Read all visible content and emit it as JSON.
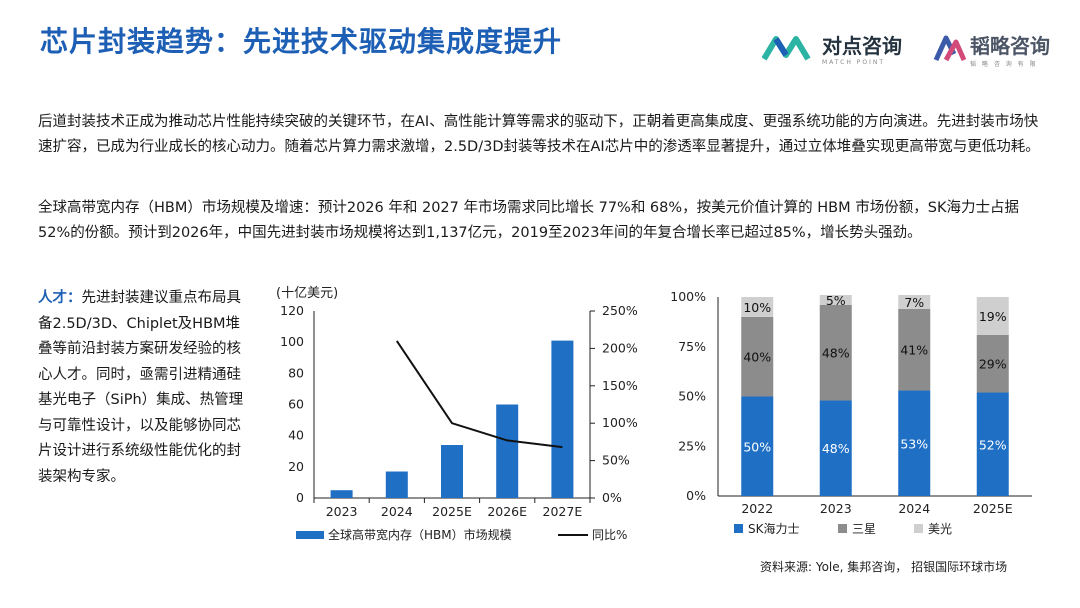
{
  "header": {
    "title": "芯片封装趋势：先进技术驱动集成度提升",
    "logo1_name": "对点咨询",
    "logo1_sub": "MATCH POINT",
    "logo2_name": "韬略咨询",
    "logo2_sub": "韬 略 咨 询 有 限"
  },
  "body": {
    "para1": "后道封装技术正成为推动芯片性能持续突破的关键环节，在AI、高性能计算等需求的驱动下，正朝着更高集成度、更强系统功能的方向演进。先进封装市场快速扩容，已成为行业成长的核心动力。随着芯片算力需求激增，2.5D/3D封装等技术在AI芯片中的渗透率显著提升，通过立体堆叠实现更高带宽与更低功耗。",
    "para2": "全球高带宽内存（HBM）市场规模及增速：预计2026 年和 2027 年市场需求同比增长 77%和 68%，按美元价值计算的 HBM 市场份额，SK海力士占据 52%的份额。预计到2026年，中国先进封装市场规模将达到1,137亿元，2019至2023年间的年复合增长率已超过85%，增长势头强劲。",
    "talent_label": "人才：",
    "talent_text": "先进封装建议重点布局具备2.5D/3D、Chiplet及HBM堆叠等前沿封装方案研发经验的核心人才。同时，亟需引进精通硅基光电子（SiPh）集成、热管理与可靠性设计，以及能够协同芯片设计进行系统级性能优化的封装架构专家。"
  },
  "source": "资料来源: Yole, 集邦咨询， 招银国际环球市场",
  "colors": {
    "title": "#1d5fb5",
    "bar": "#1f6fc5",
    "sk": "#1f6fc5",
    "samsung": "#8c8c8c",
    "micron": "#cfcfcf"
  },
  "chart_data": [
    {
      "type": "bar",
      "unit_label": "(十亿美元)",
      "categories": [
        "2023",
        "2024",
        "2025E",
        "2026E",
        "2027E"
      ],
      "series": [
        {
          "name": "全球高带宽内存（HBM）市场规模",
          "kind": "bar",
          "values": [
            5,
            17,
            34,
            60,
            101
          ]
        },
        {
          "name": "同比%",
          "kind": "line",
          "values": [
            null,
            210,
            100,
            77,
            68
          ]
        }
      ],
      "ylim": [
        0,
        120
      ],
      "yticks": [
        "0",
        "20",
        "40",
        "60",
        "80",
        "100",
        "120"
      ],
      "y2lim": [
        0,
        250
      ],
      "y2ticks": [
        "0%",
        "50%",
        "100%",
        "150%",
        "200%",
        "250%"
      ],
      "legend_position": "bottom"
    },
    {
      "type": "bar",
      "stacked": true,
      "categories": [
        "2022",
        "2023",
        "2024",
        "2025E"
      ],
      "series": [
        {
          "name": "SK海力士",
          "values": [
            50,
            48,
            53,
            52
          ],
          "labels": [
            "50%",
            "48%",
            "53%",
            "52%"
          ]
        },
        {
          "name": "三星",
          "values": [
            40,
            48,
            41,
            29
          ],
          "labels": [
            "40%",
            "48%",
            "41%",
            "29%"
          ]
        },
        {
          "name": "美光",
          "values": [
            10,
            5,
            7,
            19
          ],
          "labels": [
            "10%",
            "5%",
            "7%",
            "19%"
          ]
        }
      ],
      "ylim": [
        0,
        100
      ],
      "yticks": [
        "0%",
        "25%",
        "50%",
        "75%",
        "100%"
      ],
      "legend_position": "bottom"
    }
  ]
}
